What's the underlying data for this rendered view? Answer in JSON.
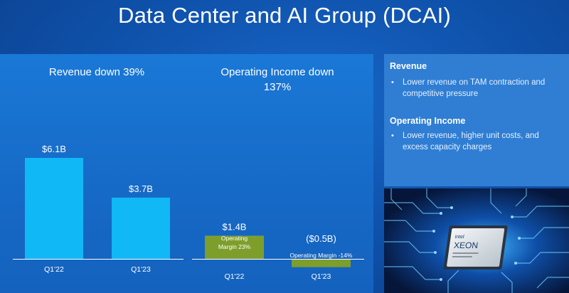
{
  "header": {
    "title": "Data Center and AI Group (DCAI)"
  },
  "colors": {
    "revenue_bar": "#10b8f6",
    "income_bar": "#7e9e2c",
    "panel": "#2f7ed3"
  },
  "chart_data": [
    {
      "type": "bar",
      "title": "Revenue down 39%",
      "categories": [
        "Q1'22",
        "Q1'23"
      ],
      "values": [
        6.1,
        3.7
      ],
      "data_labels": [
        "$6.1B",
        "$3.7B"
      ],
      "unit": "$B",
      "ylim": [
        0,
        6.5
      ],
      "grid": false,
      "legend": "none"
    },
    {
      "type": "bar",
      "title_line1": "Operating Income down",
      "title_line2": "137%",
      "categories": [
        "Q1'22",
        "Q1'23"
      ],
      "values": [
        1.4,
        -0.5
      ],
      "data_labels": [
        "$1.4B",
        "($0.5B)"
      ],
      "annotations": [
        "Operating Margin 23%",
        "Operating Margin -14%"
      ],
      "annotation_q122_line1": "Operating",
      "annotation_q122_line2": "Margin 23%",
      "unit": "$B",
      "ylim": [
        -0.5,
        6.5
      ],
      "grid": false,
      "legend": "none"
    }
  ],
  "right_panel": {
    "sections": [
      {
        "heading": "Revenue",
        "bullet": "Lower revenue on TAM contraction and competitive pressure"
      },
      {
        "heading": "Operating Income",
        "bullet": "Lower revenue, higher unit costs, and excess capacity charges"
      }
    ],
    "image": {
      "icon": "intel-xeon-chip-image",
      "brand": "intel",
      "product": "XEON"
    }
  }
}
